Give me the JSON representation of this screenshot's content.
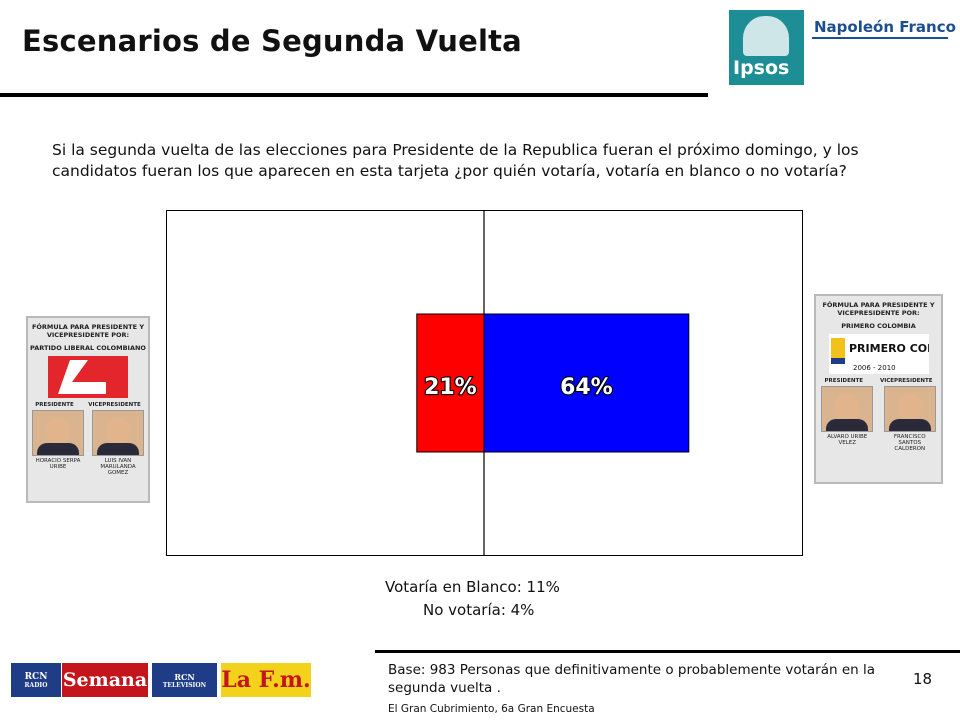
{
  "header": {
    "title": "Escenarios de Segunda Vuelta",
    "logo_ipsos": "Ipsos",
    "logo_company": "Napoleón Franco"
  },
  "question": "Si la segunda vuelta de las elecciones para Presidente de la Republica fueran el próximo domingo, y los candidatos fueran los que aparecen en esta tarjeta ¿por quién votaría, votaría en blanco o no votaría?",
  "chart_data": {
    "type": "bar",
    "orientation": "horizontal-diverging",
    "series": [
      {
        "name": "",
        "value": 21,
        "label": "21%",
        "color": "#ff0000",
        "side": "left"
      },
      {
        "name": "",
        "value": 64,
        "label": "64%",
        "color": "#0000ff",
        "side": "right"
      }
    ],
    "xlim": [
      -50,
      50
    ],
    "grid": false,
    "title": "",
    "xlabel": "",
    "ylabel": ""
  },
  "candidates": {
    "left": {
      "heading": "FÓRMULA PARA PRESIDENTE Y VICEPRESIDENTE POR:",
      "party": "PARTIDO LIBERAL COLOMBIANO",
      "role_president": "PRESIDENTE",
      "role_vice": "VICEPRESIDENTE",
      "president_name": "HORACIO SERPA URIBE",
      "vice_name": "LUIS IVAN MARULANDA GOMEZ"
    },
    "right": {
      "heading": "FÓRMULA PARA PRESIDENTE Y VICEPRESIDENTE POR:",
      "party": "PRIMERO COLOMBIA",
      "logo_text": "PRIMERO COLOMBIA",
      "logo_years": "2006 - 2010",
      "role_president": "PRESIDENTE",
      "role_vice": "VICEPRESIDENTE",
      "president_name": "ALVARO URIBE VELEZ",
      "vice_name": "FRANCISCO SANTOS CALDERON"
    }
  },
  "notes": {
    "blank_vote": "Votaría en Blanco: 11%",
    "no_vote": "No votaría: 4%"
  },
  "footer": {
    "base": "Base: 983 Personas que definitivamente o probablemente votarán en la segunda vuelta .",
    "source": "El Gran Cubrimiento, 6a Gran Encuesta",
    "page_number": "18",
    "media": {
      "rcn_radio": "RCN",
      "rcn_radio_sub": "RADIO",
      "semana": "Semana",
      "rcn_tv": "RCN",
      "rcn_tv_sub": "TELEVISION",
      "lafm": "La F.m."
    }
  },
  "colors": {
    "left_bar": "#ff0000",
    "right_bar": "#0000ff",
    "ipsos": "#1d8d96",
    "np_blue": "#1d4e8f"
  }
}
